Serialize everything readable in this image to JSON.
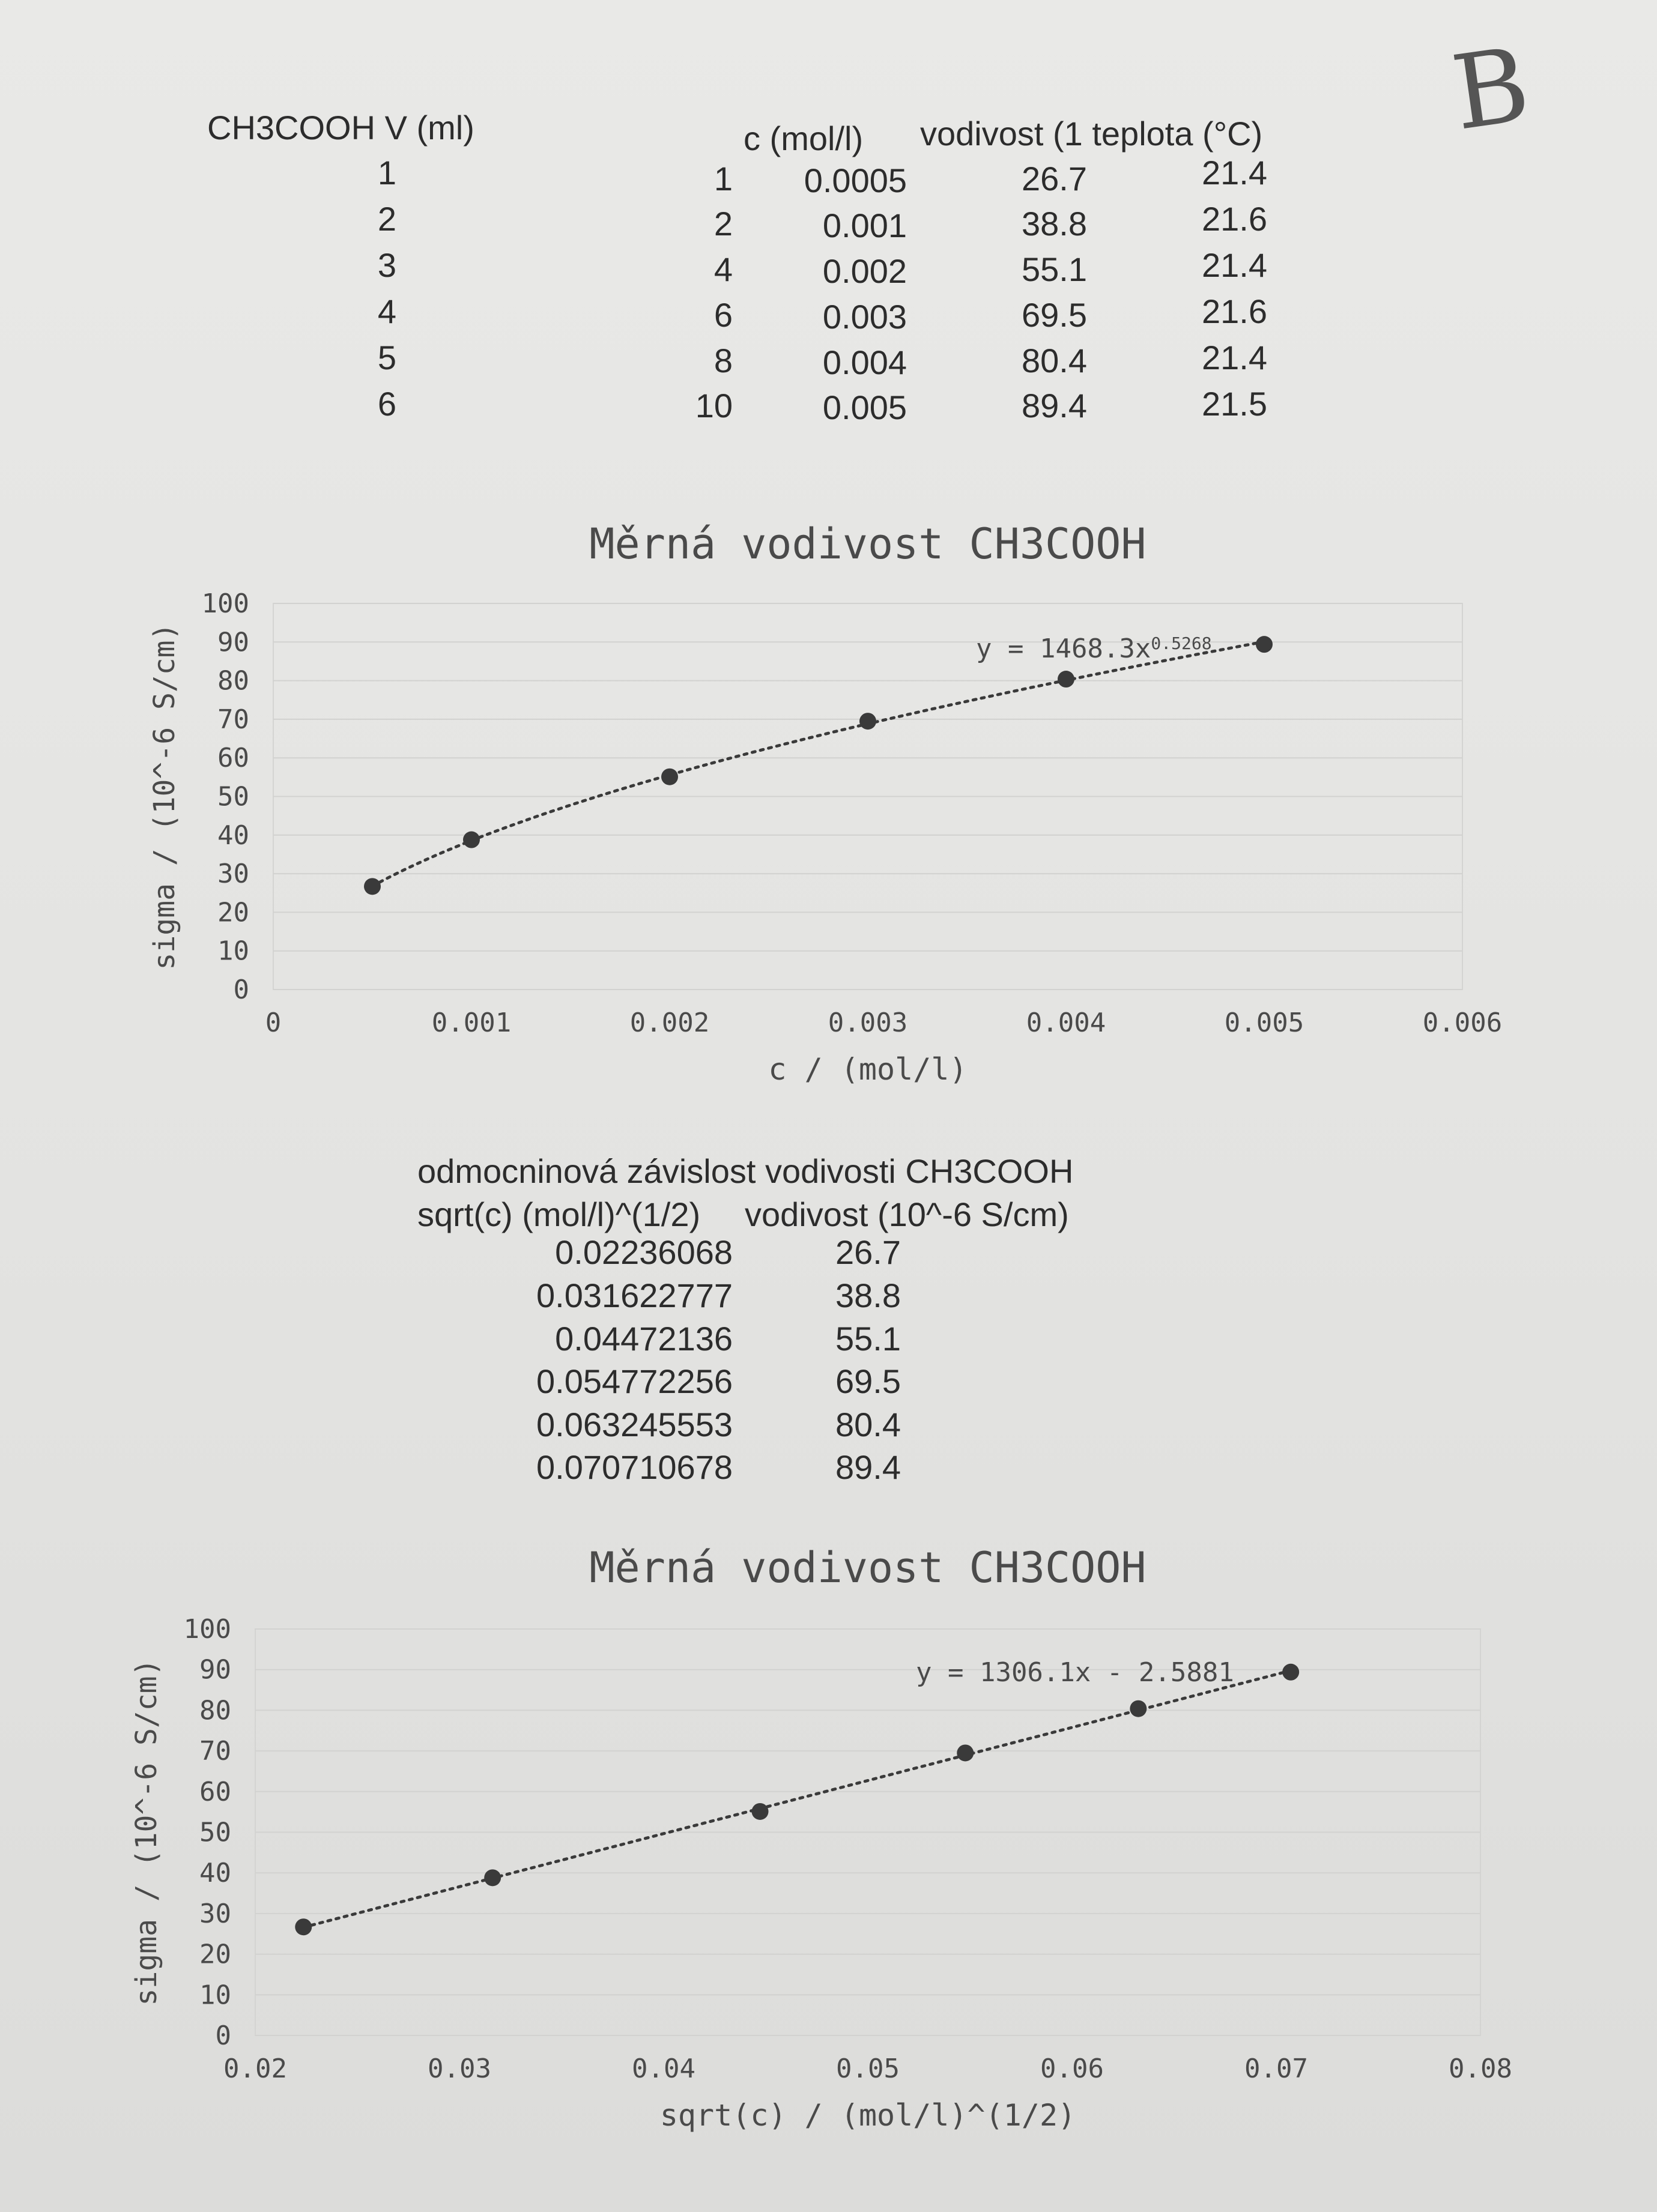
{
  "top_table": {
    "headers": {
      "volume": "CH3COOH V (ml)",
      "conc": "c (mol/l)",
      "cond_temp": "vodivost (1 teplota (°C)"
    },
    "left_index": [
      "1",
      "2",
      "3",
      "4",
      "5",
      "6"
    ],
    "rows": [
      {
        "v": "1",
        "c": "0.0005",
        "cond": "26.7",
        "t": "21.4"
      },
      {
        "v": "2",
        "c": "0.001",
        "cond": "38.8",
        "t": "21.6"
      },
      {
        "v": "4",
        "c": "0.002",
        "cond": "55.1",
        "t": "21.4"
      },
      {
        "v": "6",
        "c": "0.003",
        "cond": "69.5",
        "t": "21.6"
      },
      {
        "v": "8",
        "c": "0.004",
        "cond": "80.4",
        "t": "21.4"
      },
      {
        "v": "10",
        "c": "0.005",
        "cond": "89.4",
        "t": "21.5"
      }
    ]
  },
  "mid_table": {
    "title": "odmocninová závislost vodivosti CH3COOH",
    "col1": "sqrt(c) (mol/l)^(1/2)",
    "col2": "vodivost (10^-6 S/cm)",
    "rows": [
      {
        "x": "0.02236068",
        "y": "26.7"
      },
      {
        "x": "0.031622777",
        "y": "38.8"
      },
      {
        "x": "0.04472136",
        "y": "55.1"
      },
      {
        "x": "0.054772256",
        "y": "69.5"
      },
      {
        "x": "0.063245553",
        "y": "80.4"
      },
      {
        "x": "0.070710678",
        "y": "89.4"
      }
    ]
  },
  "handwritten_mark": "B",
  "chart_data": [
    {
      "type": "scatter",
      "title": "Měrná vodivost CH3COOH",
      "xlabel": "c / (mol/l)",
      "ylabel": "sigma / (10^-6 S/cm)",
      "xlim": [
        0,
        0.006
      ],
      "ylim": [
        0,
        100
      ],
      "x_ticks": [
        "0",
        "0.001",
        "0.002",
        "0.003",
        "0.004",
        "0.005",
        "0.006"
      ],
      "y_ticks": [
        "0",
        "10",
        "20",
        "30",
        "40",
        "50",
        "60",
        "70",
        "80",
        "90",
        "100"
      ],
      "x": [
        0.0005,
        0.001,
        0.002,
        0.003,
        0.004,
        0.005
      ],
      "y": [
        26.7,
        38.8,
        55.1,
        69.5,
        80.4,
        89.4
      ],
      "trendline": {
        "kind": "power",
        "a": 1468.3,
        "b": 0.5268,
        "style": "dotted"
      },
      "equation": {
        "main": "y = 1468.3x",
        "exponent": "0.5268"
      },
      "grid": true,
      "marker_color": "#3a3a3a"
    },
    {
      "type": "scatter",
      "title": "Měrná vodivost CH3COOH",
      "xlabel": "sqrt(c) / (mol/l)^(1/2)",
      "ylabel": "sigma / (10^-6 S/cm)",
      "xlim": [
        0.02,
        0.08
      ],
      "ylim": [
        0,
        100
      ],
      "x_ticks": [
        "0.02",
        "0.03",
        "0.04",
        "0.05",
        "0.06",
        "0.07",
        "0.08"
      ],
      "y_ticks": [
        "0",
        "10",
        "20",
        "30",
        "40",
        "50",
        "60",
        "70",
        "80",
        "90",
        "100"
      ],
      "x": [
        0.02236068,
        0.031622777,
        0.04472136,
        0.054772256,
        0.063245553,
        0.070710678
      ],
      "y": [
        26.7,
        38.8,
        55.1,
        69.5,
        80.4,
        89.4
      ],
      "trendline": {
        "kind": "linear",
        "slope": 1306.1,
        "intercept": -2.5881,
        "style": "dotted"
      },
      "equation": {
        "main": "y = 1306.1x - 2.5881",
        "exponent": ""
      },
      "grid": true,
      "marker_color": "#3a3a3a"
    }
  ]
}
